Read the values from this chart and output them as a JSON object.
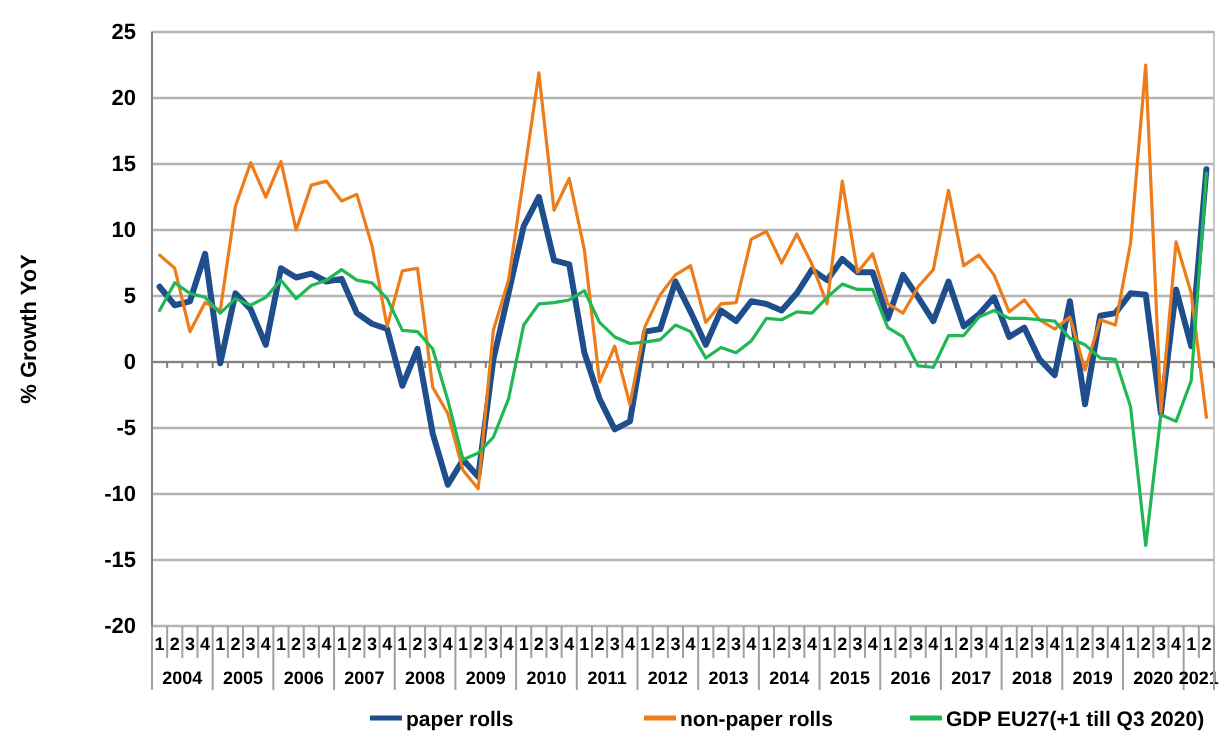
{
  "chart_data": {
    "type": "line",
    "ylabel": "% Growth YoY",
    "categories": [
      "1",
      "2",
      "3",
      "4",
      "1",
      "2",
      "3",
      "4",
      "1",
      "2",
      "3",
      "4",
      "1",
      "2",
      "3",
      "4",
      "1",
      "2",
      "3",
      "4",
      "1",
      "2",
      "3",
      "4",
      "1",
      "2",
      "3",
      "4",
      "1",
      "2",
      "3",
      "4",
      "1",
      "2",
      "3",
      "4",
      "1",
      "2",
      "3",
      "4",
      "1",
      "2",
      "3",
      "4",
      "1",
      "2",
      "3",
      "4",
      "1",
      "2",
      "3",
      "4",
      "1",
      "2",
      "3",
      "4",
      "1",
      "2",
      "3",
      "4",
      "1",
      "2",
      "3",
      "4",
      "1",
      "2",
      "3",
      "4",
      "1",
      "2"
    ],
    "annotations": [
      "2004",
      "2005",
      "2006",
      "2007",
      "2008",
      "2009",
      "2010",
      "2011",
      "2012",
      "2013",
      "2014",
      "2015",
      "2016",
      "2017",
      "2018",
      "2019",
      "2020",
      "2021"
    ],
    "series": [
      {
        "name": "paper rolls",
        "color": "#1f4e8c",
        "values": [
          5.7,
          4.3,
          4.6,
          8.2,
          -0.1,
          5.2,
          4.0,
          1.3,
          7.1,
          6.4,
          6.7,
          6.1,
          6.3,
          3.7,
          2.9,
          2.5,
          -1.8,
          1.0,
          -5.4,
          -9.3,
          -7.4,
          -8.7,
          0.2,
          5.2,
          10.3,
          12.5,
          7.7,
          7.4,
          0.7,
          -2.8,
          -5.1,
          -4.5,
          2.3,
          2.5,
          6.1,
          3.8,
          1.3,
          3.9,
          3.1,
          4.6,
          4.4,
          3.9,
          5.2,
          7.0,
          6.2,
          7.8,
          6.8,
          6.8,
          3.3,
          6.6,
          4.9,
          3.1,
          6.1,
          2.7,
          3.6,
          4.9,
          1.9,
          2.6,
          0.2,
          -1.0,
          4.6,
          -3.2,
          3.5,
          3.7,
          5.2,
          5.1,
          -3.9,
          5.5,
          1.2,
          14.6
        ]
      },
      {
        "name": "non-paper rolls",
        "color": "#ed7d1a",
        "values": [
          8.1,
          7.1,
          2.3,
          4.5,
          3.9,
          11.8,
          15.1,
          12.5,
          15.2,
          10.0,
          13.4,
          13.7,
          12.2,
          12.7,
          8.8,
          2.7,
          6.9,
          7.1,
          -1.9,
          -3.9,
          -8.2,
          -9.6,
          2.4,
          6.2,
          14.0,
          21.9,
          11.5,
          13.9,
          8.5,
          -1.5,
          1.2,
          -3.2,
          2.7,
          5.1,
          6.6,
          7.3,
          3.0,
          4.4,
          4.5,
          9.3,
          9.9,
          7.5,
          9.7,
          7.4,
          4.4,
          13.7,
          6.8,
          8.2,
          4.4,
          3.7,
          5.7,
          7.0,
          13.0,
          7.3,
          8.1,
          6.6,
          3.8,
          4.7,
          3.2,
          2.5,
          3.4,
          -0.6,
          3.2,
          2.8,
          9.0,
          22.5,
          -3.8,
          9.1,
          5.2,
          -4.2
        ]
      },
      {
        "name": "GDP EU27(+1 till Q3 2020)",
        "color": "#1fb855",
        "values": [
          3.9,
          6.0,
          5.2,
          4.9,
          3.7,
          4.8,
          4.3,
          4.9,
          6.2,
          4.8,
          5.8,
          6.2,
          7.0,
          6.2,
          6.0,
          4.8,
          2.4,
          2.3,
          1.0,
          -2.9,
          -7.4,
          -6.9,
          -5.7,
          -2.8,
          2.8,
          4.4,
          4.5,
          4.7,
          5.4,
          3.0,
          1.9,
          1.4,
          1.5,
          1.7,
          2.8,
          2.3,
          0.3,
          1.1,
          0.7,
          1.6,
          3.3,
          3.2,
          3.8,
          3.7,
          4.9,
          5.9,
          5.5,
          5.5,
          2.6,
          1.9,
          -0.3,
          -0.4,
          2.0,
          2.0,
          3.4,
          3.9,
          3.3,
          3.3,
          3.2,
          3.1,
          1.8,
          1.3,
          0.3,
          0.2,
          -3.4,
          -13.9,
          -4.0,
          -4.5,
          -1.4,
          14.3
        ]
      }
    ],
    "ylim": [
      -20,
      25
    ],
    "yticks": [
      -20,
      -15,
      -10,
      -5,
      0,
      5,
      10,
      15,
      20,
      25
    ],
    "grid": "y",
    "legend": "bottom",
    "marker": "none",
    "line_style": "solid"
  }
}
